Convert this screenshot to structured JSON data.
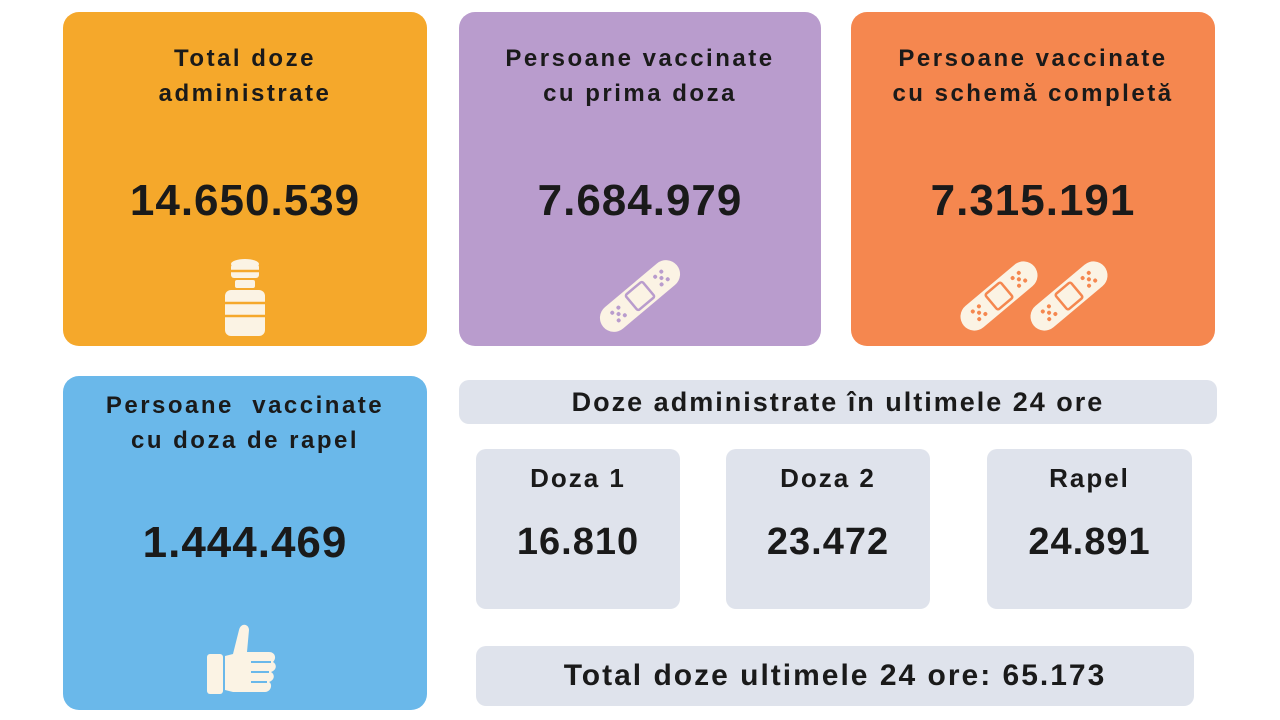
{
  "colors": {
    "total": "#f5a82b",
    "first_dose": "#b99ccd",
    "full_scheme": "#f5874f",
    "booster": "#6ab8ea",
    "panel": "#dfe3ec",
    "icon": "#fbf3e4"
  },
  "cards": {
    "total": {
      "title_line1": "Total doze",
      "title_line2": "administrate",
      "value": "14.650.539",
      "icon": "vaccine-vial-icon"
    },
    "first_dose": {
      "title_line1": "Persoane vaccinate",
      "title_line2": "cu prima doza",
      "value": "7.684.979",
      "icon": "bandage-icon"
    },
    "full_scheme": {
      "title_line1": "Persoane vaccinate",
      "title_line2": "cu schemă completă",
      "value": "7.315.191",
      "icon": "two-bandages-icon"
    },
    "booster": {
      "title_line1": "Persoane  vaccinate",
      "title_line2": "cu doza de rapel",
      "value": "1.444.469",
      "icon": "thumbs-up-icon"
    }
  },
  "last24h": {
    "header": "Doze administrate în ultimele 24 ore",
    "dose1": {
      "label": "Doza 1",
      "value": "16.810"
    },
    "dose2": {
      "label": "Doza 2",
      "value": "23.472"
    },
    "booster": {
      "label": "Rapel",
      "value": "24.891"
    },
    "total_line": "Total doze ultimele 24 ore: 65.173"
  }
}
